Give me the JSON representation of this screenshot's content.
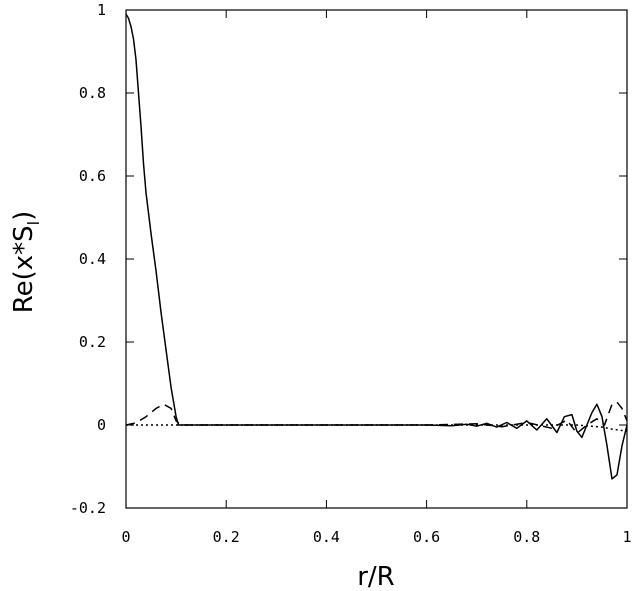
{
  "chart_data": {
    "type": "line",
    "title": "",
    "xlabel": "r/R",
    "ylabel_main": "Re(x*S",
    "ylabel_sub": "l",
    "ylabel_close": ")",
    "xlim": [
      0,
      1
    ],
    "ylim": [
      -0.2,
      1
    ],
    "xticks": [
      0,
      0.2,
      0.4,
      0.6,
      0.8,
      1
    ],
    "xtick_labels": [
      "0",
      "0.2",
      "0.4",
      "0.6",
      "0.8",
      "1"
    ],
    "yticks": [
      -0.2,
      0,
      0.2,
      0.4,
      0.6,
      0.8,
      1
    ],
    "ytick_labels": [
      "-0.2",
      "0",
      "0.2",
      "0.4",
      "0.6",
      "0.8",
      "1"
    ],
    "grid": false,
    "legend": "none",
    "series": [
      {
        "style": "solid",
        "x": [
          0,
          0.005,
          0.01,
          0.015,
          0.02,
          0.025,
          0.03,
          0.035,
          0.04,
          0.05,
          0.06,
          0.07,
          0.08,
          0.09,
          0.1,
          0.105,
          0.11,
          0.2,
          0.4,
          0.6,
          0.65,
          0.68,
          0.7,
          0.72,
          0.74,
          0.76,
          0.78,
          0.8,
          0.82,
          0.84,
          0.86,
          0.875,
          0.89,
          0.9,
          0.91,
          0.92,
          0.93,
          0.94,
          0.95,
          0.96,
          0.97,
          0.98,
          0.99,
          1.0
        ],
        "y": [
          0.99,
          0.98,
          0.96,
          0.93,
          0.88,
          0.8,
          0.72,
          0.63,
          0.56,
          0.46,
          0.37,
          0.27,
          0.18,
          0.09,
          0.02,
          0.0,
          0.0,
          0.0,
          0.0,
          0.0,
          -0.002,
          0.002,
          -0.003,
          0.004,
          -0.005,
          0.006,
          -0.008,
          0.01,
          -0.012,
          0.015,
          -0.018,
          0.02,
          0.025,
          -0.015,
          -0.03,
          0.0,
          0.03,
          0.05,
          0.02,
          -0.05,
          -0.13,
          -0.12,
          -0.05,
          0.0
        ]
      },
      {
        "style": "dashed",
        "x": [
          0,
          0.02,
          0.04,
          0.06,
          0.075,
          0.09,
          0.1,
          0.11,
          0.2,
          0.4,
          0.6,
          0.7,
          0.75,
          0.8,
          0.85,
          0.88,
          0.9,
          0.92,
          0.94,
          0.955,
          0.97,
          0.98,
          0.99,
          1.0
        ],
        "y": [
          0.0,
          0.005,
          0.02,
          0.04,
          0.05,
          0.04,
          0.01,
          0.0,
          0.0,
          0.0,
          0.0,
          0.003,
          -0.004,
          0.006,
          -0.008,
          0.012,
          -0.02,
          0.0,
          0.015,
          0.0,
          0.05,
          0.055,
          0.04,
          0.01
        ]
      },
      {
        "style": "dotted",
        "x": [
          0,
          0.2,
          0.4,
          0.6,
          0.8,
          0.9,
          0.95,
          0.97,
          1.0
        ],
        "y": [
          0.0,
          0.0,
          0.0,
          0.0,
          0.0,
          0.0,
          -0.005,
          -0.01,
          -0.015
        ]
      }
    ]
  }
}
